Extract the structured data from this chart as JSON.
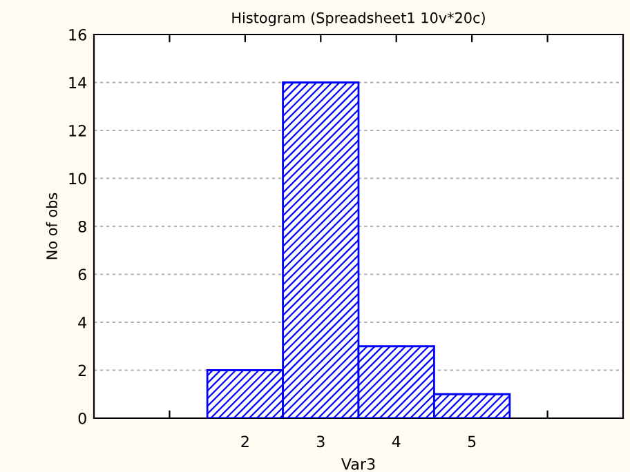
{
  "chart_data": {
    "type": "histogram",
    "title": "Histogram (Spreadsheet1 10v*20c)",
    "xlabel": "Var3",
    "ylabel": "No of obs",
    "bins": [
      1.5,
      2.5,
      3.5,
      4.5,
      5.5
    ],
    "values": [
      2,
      14,
      3,
      1
    ],
    "color": "#0000ff",
    "xlim": [
      0,
      7
    ],
    "xticks": [
      {
        "value": 1,
        "label": null
      },
      2,
      3,
      4,
      5,
      {
        "value": 6,
        "label": null
      }
    ],
    "ylim": [
      0,
      16
    ],
    "yticks": [
      0,
      2,
      4,
      6,
      8,
      10,
      12,
      14,
      16
    ],
    "grid": "y"
  }
}
